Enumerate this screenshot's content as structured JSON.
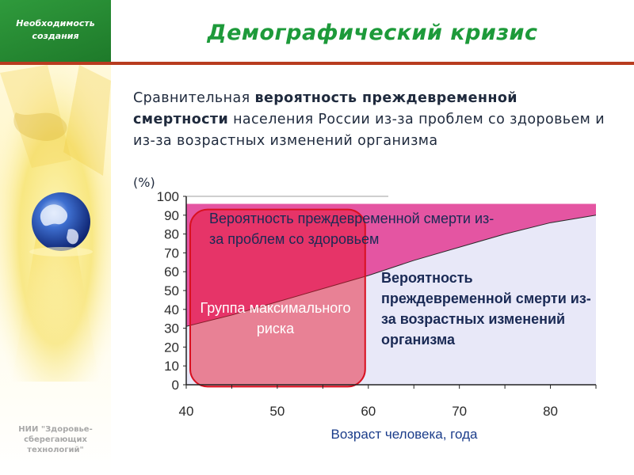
{
  "sidebar": {
    "section_title": "Необходимость создания",
    "organization": "НИИ \"Здоровье-сберегающих технологий\""
  },
  "header": {
    "title": "Демографический кризис"
  },
  "intro": {
    "part1": "Сравнительная ",
    "bold1": "вероятность преждевременной смертности",
    "part2": " населения России из-за проблем со здоровьем и из-за возрастных изменений организма",
    "unit": "(%)"
  },
  "chart_data": {
    "type": "area",
    "x": [
      40,
      45,
      50,
      55,
      60,
      65,
      70,
      75,
      80,
      85
    ],
    "xlim": [
      40,
      85
    ],
    "ylim": [
      0,
      100
    ],
    "x_ticks": [
      40,
      50,
      60,
      70,
      80
    ],
    "y_ticks": [
      0,
      10,
      20,
      30,
      40,
      50,
      60,
      70,
      80,
      90,
      100
    ],
    "xlabel": "Возраст человека, года",
    "ylabel": "(%)",
    "series": [
      {
        "values": [
          31,
          37,
          44,
          51,
          58,
          66,
          73,
          80,
          86,
          90
        ],
        "color": "#e8e8f8"
      },
      {
        "values": [
          96,
          96,
          96,
          96,
          96,
          96,
          96,
          96,
          96,
          96
        ],
        "color": "#e455a2"
      }
    ],
    "annotations": [
      "Вероятность преждевременной смерти из-за проблем со здоровьем",
      "Вероятность преждевременной смерти из-за возрастных изменений организма",
      "Группа максимального риска"
    ],
    "highlight": {
      "label": "Группа максимального риска",
      "x_range": [
        40,
        60
      ],
      "color": "#e8102a"
    }
  },
  "colors": {
    "title_green": "#1d9a3a",
    "header_green": "#2f9a3c",
    "strip_red": "#b83b1f",
    "health_area": "#e455a2",
    "age_area": "#e8e8f8",
    "risk_red": "#e8102a"
  }
}
